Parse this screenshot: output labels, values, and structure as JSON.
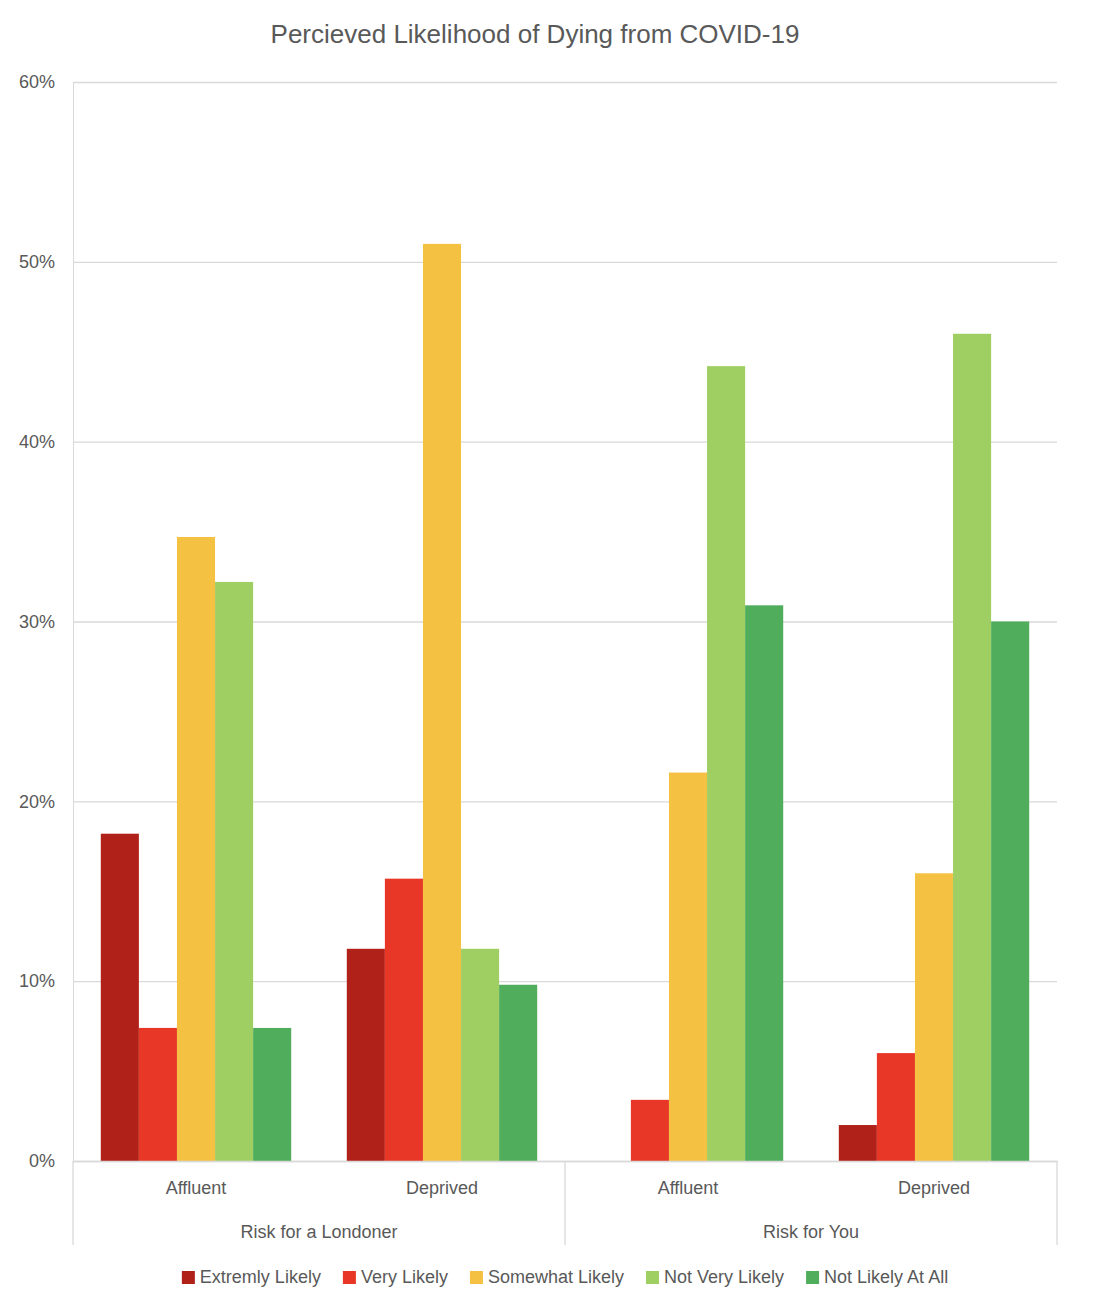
{
  "chart_data": {
    "type": "bar",
    "title": "Percieved Likelihood of Dying from COVID-19",
    "categories": [
      "Affluent",
      "Deprived",
      "Affluent",
      "Deprived"
    ],
    "groups": [
      "Risk for a Londoner",
      "Risk for a Londoner",
      "Risk for You",
      "Risk for You"
    ],
    "series": [
      {
        "name": "Extremly Likely",
        "color": "#b0211a",
        "values": [
          18.2,
          11.8,
          0,
          2.0
        ]
      },
      {
        "name": "Very Likely",
        "color": "#e83727",
        "values": [
          7.4,
          15.7,
          3.4,
          6.0
        ]
      },
      {
        "name": "Somewhat Likely",
        "color": "#f4c143",
        "values": [
          34.7,
          51.0,
          21.6,
          16.0
        ]
      },
      {
        "name": "Not Very Likely",
        "color": "#9fcf63",
        "values": [
          32.2,
          11.8,
          44.2,
          46.0
        ]
      },
      {
        "name": "Not Likely At All",
        "color": "#4fad5b",
        "values": [
          7.4,
          9.8,
          30.9,
          30.0
        ]
      }
    ],
    "ylim": [
      0,
      60
    ],
    "yticks": [
      {
        "value": 0,
        "label": "0%"
      },
      {
        "value": 10,
        "label": "10%"
      },
      {
        "value": 20,
        "label": "20%"
      },
      {
        "value": 30,
        "label": "30%"
      },
      {
        "value": 40,
        "label": "40%"
      },
      {
        "value": 50,
        "label": "50%"
      },
      {
        "value": 60,
        "label": "60%"
      }
    ],
    "grid": true,
    "legend": "bottom"
  }
}
